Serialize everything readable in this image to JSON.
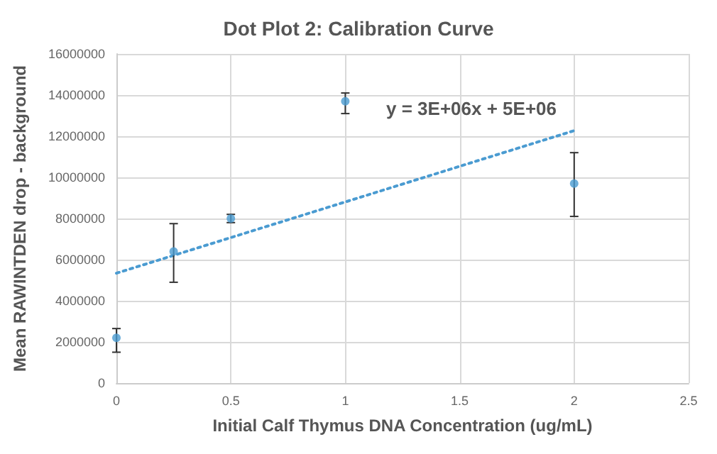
{
  "chart_data": {
    "type": "scatter",
    "title": "Dot Plot 2: Calibration Curve",
    "xlabel": "Initial Calf Thymus DNA Concentration (ug/mL)",
    "ylabel": "Mean RAWINTDEN drop - background",
    "annotations": [
      "y = 3E+06x + 5E+06"
    ],
    "series": [
      {
        "color": "#4a9bd1",
        "x": [
          0,
          0.25,
          0.5,
          1,
          2
        ],
        "values": [
          2200000,
          6400000,
          8000000,
          13700000,
          9700000
        ],
        "errors": [
          [
            1500000,
            2650000
          ],
          [
            4900000,
            7750000
          ],
          [
            7800000,
            8200000
          ],
          [
            13100000,
            14100000
          ],
          [
            8100000,
            11200000
          ]
        ],
        "marker": "circle"
      },
      {
        "type": "line",
        "color": "#4a9bd1",
        "x": [
          0,
          2
        ],
        "values": [
          5340000,
          12270000
        ],
        "line_style": "dotted",
        "marker": "none"
      }
    ],
    "xlim": [
      0,
      2.5
    ],
    "xticks": [
      0,
      0.5,
      1,
      1.5,
      2,
      2.5
    ],
    "ylim": [
      0,
      16000000
    ],
    "yticks": [
      0,
      2000000,
      4000000,
      6000000,
      8000000,
      10000000,
      12000000,
      14000000,
      16000000
    ],
    "grid": true
  }
}
